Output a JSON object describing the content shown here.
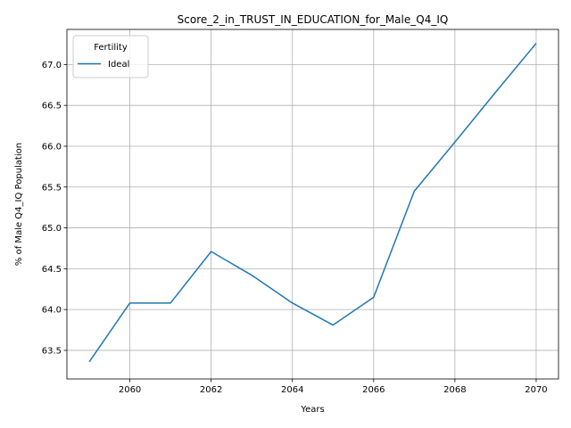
{
  "chart_data": {
    "type": "line",
    "title": "Score_2_in_TRUST_IN_EDUCATION_for_Male_Q4_IQ",
    "xlabel": "Years",
    "ylabel": "% of Male Q4_IQ Population",
    "xlim": [
      2058.45,
      2070.55
    ],
    "ylim": [
      63.15,
      67.43
    ],
    "xticks": [
      2060,
      2062,
      2064,
      2066,
      2068,
      2070
    ],
    "yticks": [
      63.5,
      64.0,
      64.5,
      65.0,
      65.5,
      66.0,
      66.5,
      67.0
    ],
    "grid": true,
    "legend": {
      "title": "Fertility",
      "placement": "top-left"
    },
    "series": [
      {
        "name": "Ideal",
        "color": "#1f77b4",
        "x": [
          2059,
          2060,
          2061,
          2062,
          2063,
          2064,
          2065,
          2066,
          2067,
          2068,
          2069,
          2070
        ],
        "values": [
          63.36,
          64.08,
          64.08,
          64.71,
          64.42,
          64.08,
          63.81,
          64.15,
          65.45,
          66.05,
          66.66,
          67.26
        ]
      }
    ]
  }
}
